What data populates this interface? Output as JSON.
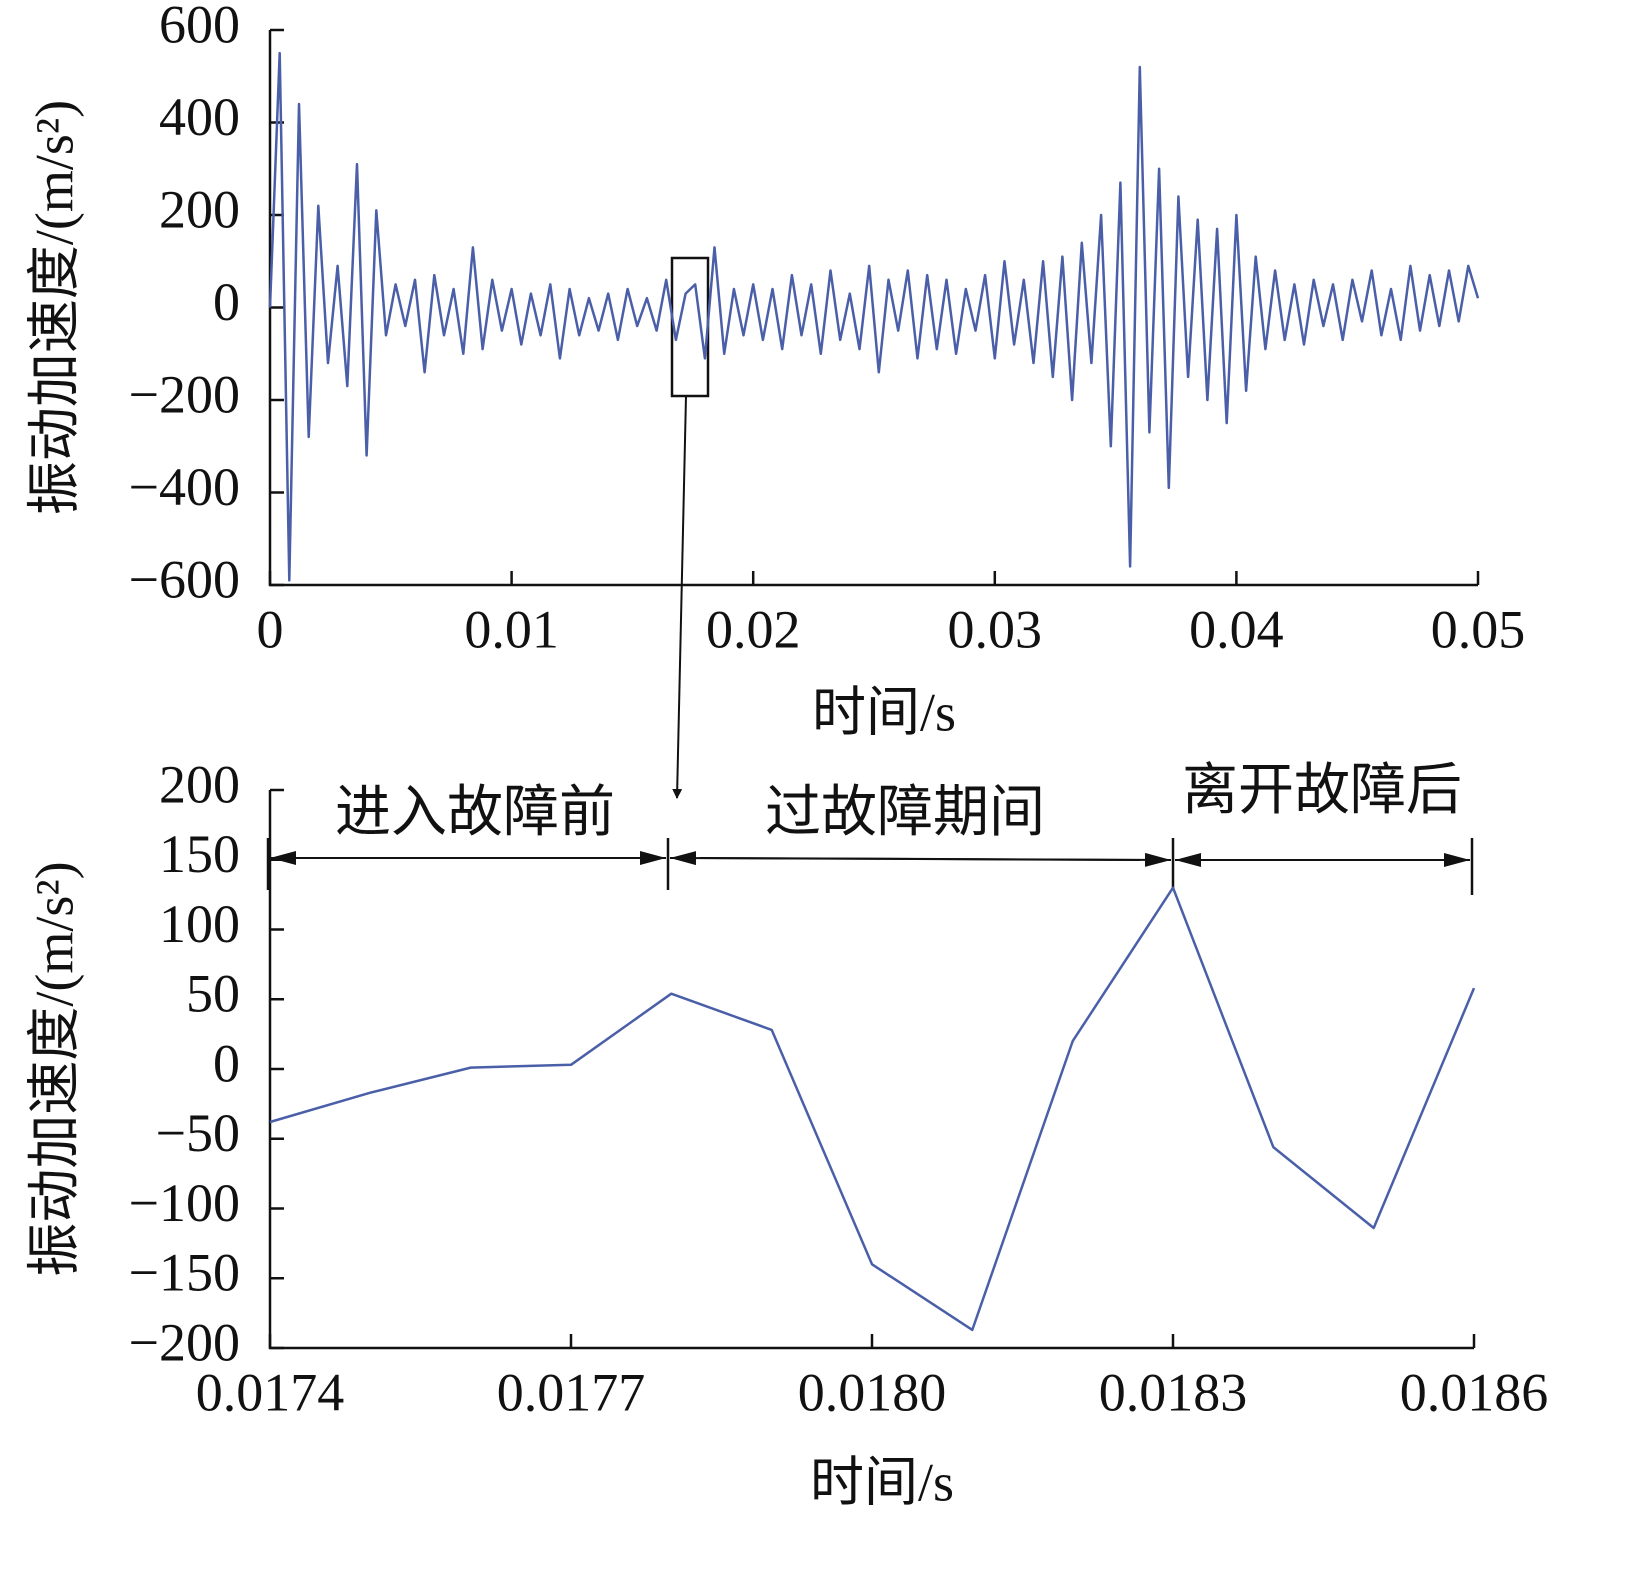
{
  "chart_data": [
    {
      "type": "line",
      "x_label": "时间/s",
      "y_label": "振动加速度/(m/s²)",
      "color": "#4a5fa8",
      "x": [
        0,
        0.0004,
        0.0008,
        0.0012,
        0.0016,
        0.002,
        0.0024,
        0.0028,
        0.0032,
        0.0036,
        0.004,
        0.0044,
        0.0048,
        0.0052,
        0.0056,
        0.006,
        0.0064,
        0.0068,
        0.0072,
        0.0076,
        0.008,
        0.0084,
        0.0088,
        0.0092,
        0.0096,
        0.01,
        0.0104,
        0.0108,
        0.0112,
        0.0116,
        0.012,
        0.0124,
        0.0128,
        0.0132,
        0.0136,
        0.014,
        0.0144,
        0.0148,
        0.0152,
        0.0156,
        0.016,
        0.0164,
        0.0168,
        0.0172,
        0.0176,
        0.018,
        0.0184,
        0.0188,
        0.0192,
        0.0196,
        0.02,
        0.0204,
        0.0208,
        0.0212,
        0.0216,
        0.022,
        0.0224,
        0.0228,
        0.0232,
        0.0236,
        0.024,
        0.0244,
        0.0248,
        0.0252,
        0.0256,
        0.026,
        0.0264,
        0.0268,
        0.0272,
        0.0276,
        0.028,
        0.0284,
        0.0288,
        0.0292,
        0.0296,
        0.03,
        0.0304,
        0.0308,
        0.0312,
        0.0316,
        0.032,
        0.0324,
        0.0328,
        0.0332,
        0.0336,
        0.034,
        0.0344,
        0.0348,
        0.0352,
        0.0356,
        0.036,
        0.0364,
        0.0368,
        0.0372,
        0.0376,
        0.038,
        0.0384,
        0.0388,
        0.0392,
        0.0396,
        0.04,
        0.0404,
        0.0408,
        0.0412,
        0.0416,
        0.042,
        0.0424,
        0.0428,
        0.0432,
        0.0436,
        0.044,
        0.0444,
        0.0448,
        0.0452,
        0.0456,
        0.046,
        0.0464,
        0.0468,
        0.0472,
        0.0476,
        0.048,
        0.0484,
        0.0488,
        0.0492,
        0.0496,
        0.05
      ],
      "values": [
        0,
        550,
        -590,
        440,
        -280,
        220,
        -120,
        90,
        -170,
        310,
        -320,
        210,
        -60,
        50,
        -40,
        60,
        -140,
        70,
        -60,
        40,
        -100,
        130,
        -90,
        60,
        -50,
        40,
        -80,
        30,
        -60,
        50,
        -110,
        40,
        -60,
        20,
        -50,
        30,
        -70,
        40,
        -40,
        20,
        -50,
        60,
        -70,
        30,
        50,
        -110,
        130,
        -100,
        40,
        -60,
        50,
        -70,
        40,
        -90,
        70,
        -60,
        50,
        -100,
        80,
        -70,
        30,
        -90,
        90,
        -140,
        60,
        -50,
        80,
        -110,
        70,
        -90,
        60,
        -100,
        40,
        -50,
        70,
        -110,
        100,
        -80,
        60,
        -120,
        100,
        -150,
        110,
        -200,
        140,
        -120,
        200,
        -300,
        270,
        -560,
        520,
        -270,
        300,
        -390,
        240,
        -150,
        190,
        -200,
        170,
        -250,
        200,
        -180,
        110,
        -90,
        80,
        -70,
        50,
        -80,
        60,
        -40,
        50,
        -70,
        60,
        -30,
        80,
        -60,
        40,
        -70,
        90,
        -50,
        70,
        -40,
        80,
        -30,
        90,
        20
      ],
      "xlim": [
        0,
        0.05
      ],
      "xticks": [
        0,
        0.01,
        0.02,
        0.03,
        0.04,
        0.05
      ],
      "ylim": [
        -600,
        600
      ],
      "yticks": [
        {
          "value": -600,
          "label": "−600"
        },
        {
          "value": -400,
          "label": "−400"
        },
        {
          "value": -200,
          "label": "−200"
        },
        0,
        200,
        400,
        600
      ]
    },
    {
      "type": "line",
      "x_label": "时间/s",
      "y_label": "振动加速度/(m/s²)",
      "color": "#4a5fa8",
      "annotations": [
        "进入故障前",
        "过故障期间",
        "离开故障后"
      ],
      "x": [
        0.0174,
        0.0175,
        0.0176,
        0.0177,
        0.0178,
        0.0179,
        0.018,
        0.0181,
        0.0182,
        0.0183,
        0.0184,
        0.0185,
        0.0186
      ],
      "values": [
        -38,
        -17,
        1,
        3,
        54,
        28,
        -140,
        -187,
        20,
        130,
        -56,
        -114,
        58
      ],
      "xlim": [
        0.0174,
        0.0186
      ],
      "xticks": [
        0.0174,
        0.0177,
        {
          "value": 0.018,
          "label": "0.0180"
        },
        0.0183,
        0.0186
      ],
      "ylim": [
        -200,
        200
      ],
      "yticks": [
        {
          "value": -200,
          "label": "−200"
        },
        {
          "value": -150,
          "label": "−150"
        },
        {
          "value": -100,
          "label": "−100"
        },
        {
          "value": -50,
          "label": "−50"
        },
        0,
        50,
        100,
        150,
        200
      ]
    }
  ]
}
